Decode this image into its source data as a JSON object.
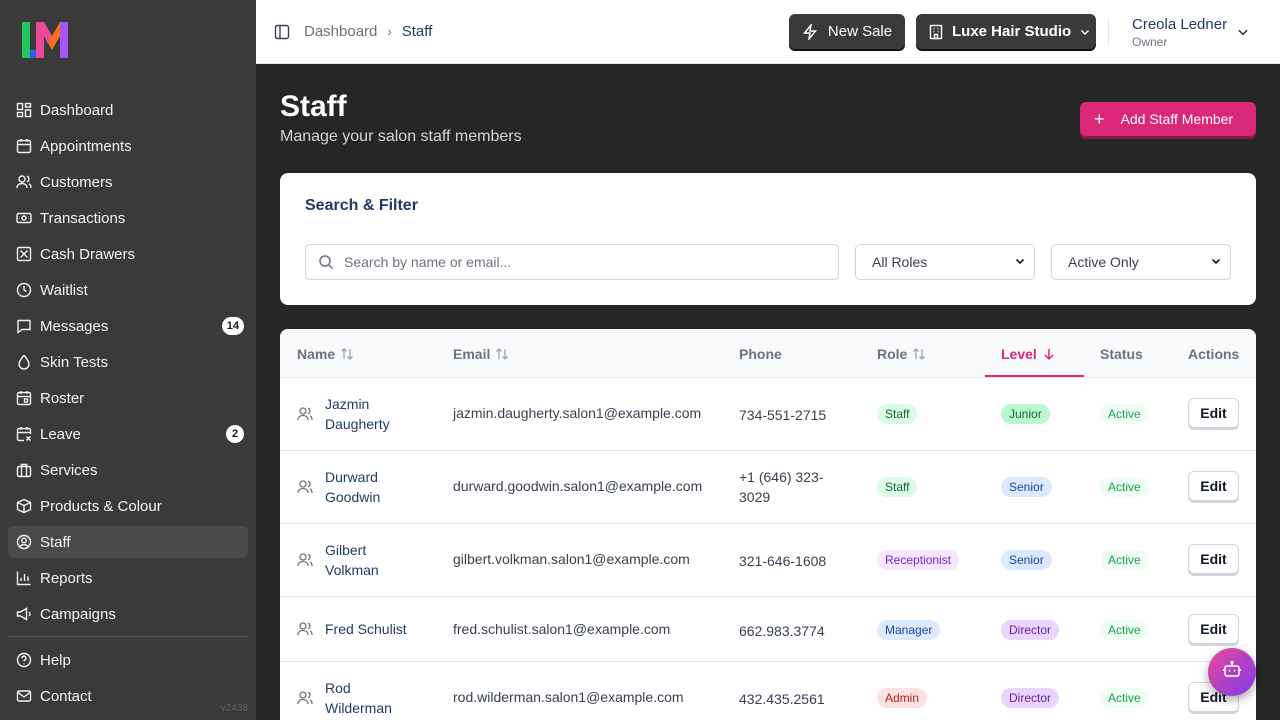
{
  "sidebar": {
    "items": [
      {
        "label": "Dashboard",
        "icon": "dashboard-icon"
      },
      {
        "label": "Appointments",
        "icon": "calendar-icon"
      },
      {
        "label": "Customers",
        "icon": "users-icon"
      },
      {
        "label": "Transactions",
        "icon": "banknote-icon"
      },
      {
        "label": "Cash Drawers",
        "icon": "cash-drawer-icon"
      },
      {
        "label": "Waitlist",
        "icon": "clock-icon"
      },
      {
        "label": "Messages",
        "icon": "message-icon",
        "badge": "14"
      },
      {
        "label": "Skin Tests",
        "icon": "droplet-icon"
      },
      {
        "label": "Roster",
        "icon": "calendar-check-icon"
      },
      {
        "label": "Leave",
        "icon": "calendar-x-icon",
        "badge": "2"
      },
      {
        "label": "Services",
        "icon": "briefcase-icon"
      },
      {
        "label": "Products & Colour",
        "icon": "package-icon"
      },
      {
        "label": "Staff",
        "icon": "user-circle-icon",
        "active": true
      },
      {
        "label": "Reports",
        "icon": "bar-chart-icon"
      },
      {
        "label": "Campaigns",
        "icon": "megaphone-icon"
      }
    ],
    "bottom": [
      {
        "label": "Help",
        "icon": "help-icon"
      },
      {
        "label": "Contact",
        "icon": "mail-icon"
      }
    ],
    "version": "v2438"
  },
  "header": {
    "breadcrumb": [
      "Dashboard",
      "Staff"
    ],
    "new_sale": "New Sale",
    "studio": "Luxe Hair Studio",
    "user_name": "Creola Ledner",
    "user_role": "Owner"
  },
  "page": {
    "title": "Staff",
    "subtitle": "Manage your salon staff members",
    "add_button": "Add Staff Member"
  },
  "filter": {
    "title": "Search & Filter",
    "search_placeholder": "Search by name or email...",
    "role_select": "All Roles",
    "status_select": "Active Only"
  },
  "table": {
    "columns": {
      "name": "Name",
      "email": "Email",
      "phone": "Phone",
      "role": "Role",
      "level": "Level",
      "status": "Status",
      "actions": "Actions"
    },
    "rows": [
      {
        "name_1": "Jazmin",
        "name_2": "Daugherty",
        "email": "jazmin.daugherty.salon1@example.com",
        "phone_1": "734-551-2715",
        "phone_2": "",
        "role": "Staff",
        "level": "Junior",
        "status": "Active",
        "action": "Edit"
      },
      {
        "name_1": "Durward",
        "name_2": "Goodwin",
        "email": "durward.goodwin.salon1@example.com",
        "phone_1": "+1 (646) 323-",
        "phone_2": "3029",
        "role": "Staff",
        "level": "Senior",
        "status": "Active",
        "action": "Edit"
      },
      {
        "name_1": "Gilbert",
        "name_2": "Volkman",
        "email": "gilbert.volkman.salon1@example.com",
        "phone_1": "321-646-1608",
        "phone_2": "",
        "role": "Receptionist",
        "level": "Senior",
        "status": "Active",
        "action": "Edit"
      },
      {
        "name_1": "Fred Schulist",
        "name_2": "",
        "email": "fred.schulist.salon1@example.com",
        "phone_1": "662.983.3774",
        "phone_2": "",
        "role": "Manager",
        "level": "Director",
        "status": "Active",
        "action": "Edit"
      },
      {
        "name_1": "Rod",
        "name_2": "Wilderman",
        "email": "rod.wilderman.salon1@example.com",
        "phone_1": "432.435.2561",
        "phone_2": "",
        "role": "Admin",
        "level": "Director",
        "status": "Active",
        "action": "Edit"
      }
    ]
  },
  "colors": {
    "accent": "#db2777",
    "sidebar_bg": "#3a3a3a",
    "main_bg": "#262626"
  }
}
